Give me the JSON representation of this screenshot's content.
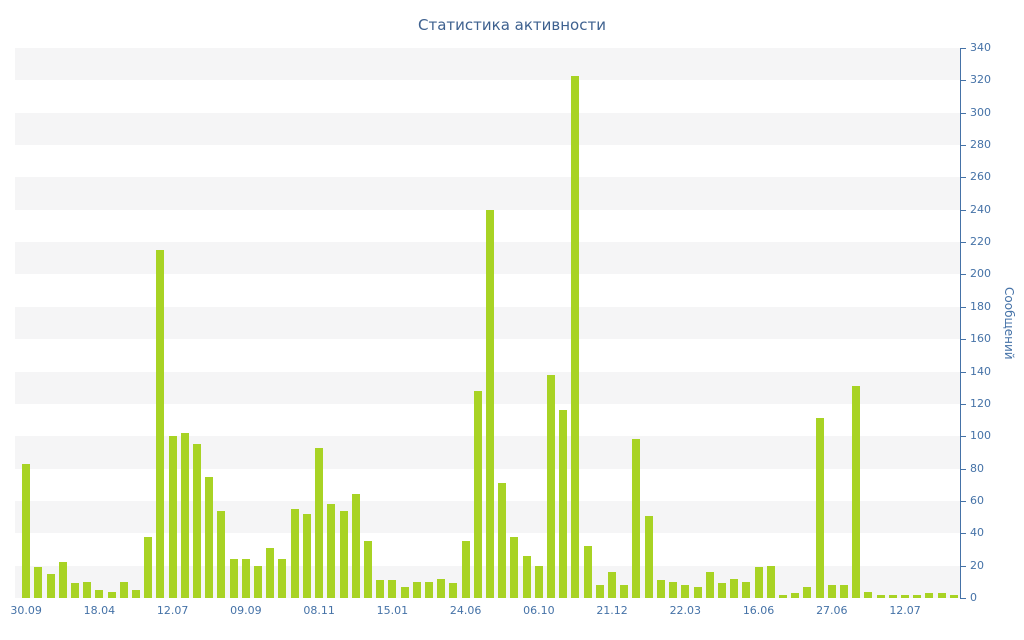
{
  "chart_data": {
    "type": "bar",
    "title": "Статистика активности",
    "ylabel": "Сообщений",
    "xlabel": "",
    "ylim": [
      0,
      340
    ],
    "y_tick_step": 20,
    "y_tick_labels": [
      "0",
      "20",
      "40",
      "60",
      "80",
      "100",
      "120",
      "140",
      "160",
      "180",
      "200",
      "220",
      "240",
      "260",
      "280",
      "300",
      "320",
      "340"
    ],
    "y_axis_position": "right",
    "legend": "none",
    "grid": "alternating horizontal stripe bands, no gridlines",
    "x_tick_labels": [
      {
        "index": 0,
        "label": "30.09"
      },
      {
        "index": 6,
        "label": "18.04"
      },
      {
        "index": 12,
        "label": "12.07"
      },
      {
        "index": 18,
        "label": "09.09"
      },
      {
        "index": 24,
        "label": "08.11"
      },
      {
        "index": 30,
        "label": "15.01"
      },
      {
        "index": 36,
        "label": "24.06"
      },
      {
        "index": 42,
        "label": "06.10"
      },
      {
        "index": 48,
        "label": "21.12"
      },
      {
        "index": 54,
        "label": "22.03"
      },
      {
        "index": 60,
        "label": "16.06"
      },
      {
        "index": 66,
        "label": "27.06"
      },
      {
        "index": 72,
        "label": "12.07"
      }
    ],
    "values": [
      83,
      19,
      15,
      22,
      9,
      10,
      5,
      4,
      10,
      5,
      38,
      215,
      100,
      102,
      95,
      75,
      54,
      24,
      24,
      20,
      31,
      24,
      55,
      52,
      93,
      58,
      54,
      64,
      35,
      11,
      11,
      7,
      10,
      10,
      12,
      9,
      35,
      128,
      240,
      71,
      38,
      26,
      20,
      138,
      116,
      323,
      32,
      8,
      16,
      8,
      98,
      51,
      11,
      10,
      8,
      7,
      16,
      9,
      12,
      10,
      19,
      20,
      2,
      3,
      7,
      111,
      8,
      8,
      131,
      4,
      2,
      2,
      2,
      2,
      3,
      3,
      2
    ],
    "colors": {
      "bar": "#A8D324",
      "stripe": "#F5F5F6",
      "axis": "#4572A7",
      "tick_labels": "#4572A7",
      "title": "#3E618F"
    }
  }
}
